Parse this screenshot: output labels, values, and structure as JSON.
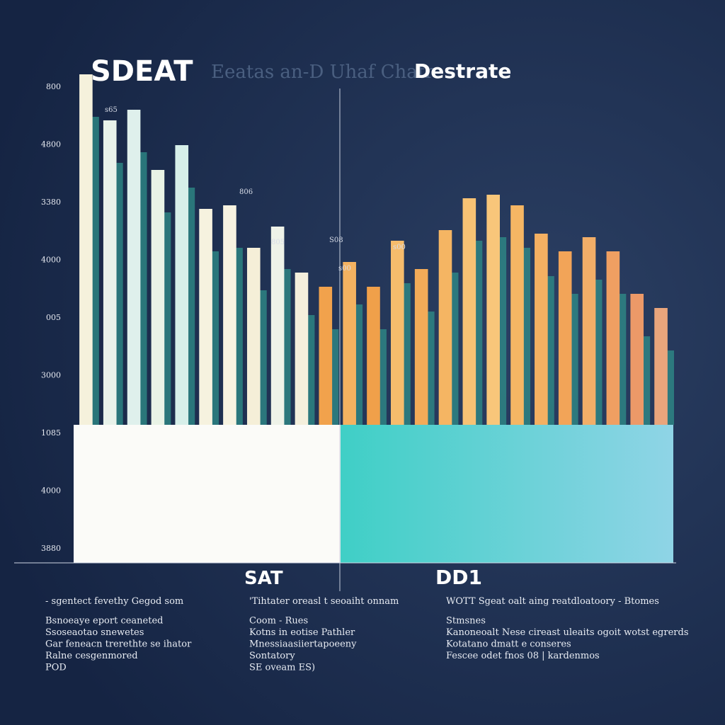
{
  "chart_data": {
    "type": "bar",
    "title": "SDEAT",
    "subtitle": "Eeatas an-D Uhaf Chatr",
    "title_right": "Destrate",
    "y_axis_labels": [
      "800",
      "4800",
      "3380",
      "4000",
      "005",
      "3000",
      "1085",
      "4000",
      "3880"
    ],
    "categories": [
      null,
      null,
      null,
      null,
      null,
      null,
      null,
      null,
      null,
      null,
      null,
      null,
      null,
      null,
      null,
      null,
      null,
      null,
      null,
      null,
      null,
      null,
      null,
      null,
      null
    ],
    "values": [
      99,
      86,
      89,
      72,
      79,
      61,
      62,
      50,
      56,
      43,
      39,
      46,
      39,
      52,
      44,
      55,
      64,
      65,
      62,
      54,
      49,
      53,
      49,
      37,
      33
    ],
    "colors": [
      "#f5f1dc",
      "#e8f2ea",
      "#dff0ec",
      "#e9f3e6",
      "#d7efe9",
      "#f6f2df",
      "#f7f3e1",
      "#f5efd8",
      "#eef2e8",
      "#f4efdc",
      "#f1a24c",
      "#f4b260",
      "#f0a04a",
      "#f6bc6c",
      "#f3ab58",
      "#f5b563",
      "#f7c274",
      "#f8c67a",
      "#f5b664",
      "#f4b062",
      "#f2a458",
      "#f2ae68",
      "#ef9f62",
      "#ec9968",
      "#e9a57c"
    ],
    "ylim": [
      0,
      100
    ],
    "annotations": [
      "s65",
      "806",
      "805",
      "S08",
      "s00",
      "s00"
    ],
    "section_labels": [
      "SAT",
      "DD1"
    ],
    "notes": [
      [
        "- sgentect fevethy Gegod som",
        "Bsnoeaye eport ceaneted",
        "Ssoseaotao snewetes",
        "Gar feneacn trerethte se ihator",
        "Ralne cesgenmored",
        "POD"
      ],
      [
        "'Tihtater oreasl t seoaiht onnam",
        "Coom - Rues",
        "Kotns in eotise Pathler",
        "Mnessiaasiiertapoeeny",
        "Sontatory",
        "SE oveam ES)"
      ],
      [
        "WOTT Sgeat oalt aing reatdloatoory  - Btomes",
        "Stmsnes",
        "Kanoneoalt Nese cireast uleaits ogoit wotst egrerds",
        "Kotatano dmatt e conseres",
        "Fescee odet fnos  08 | kardenmos"
      ]
    ]
  }
}
